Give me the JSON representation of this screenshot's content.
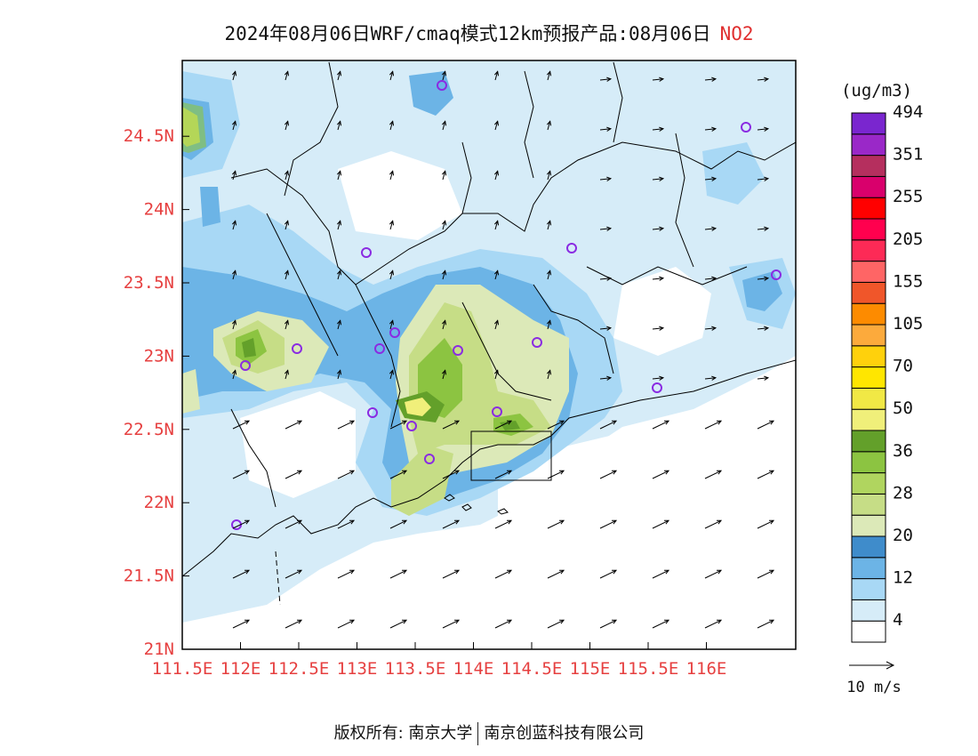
{
  "title": {
    "main": "2024年08月06日WRF/cmaq模式12km预报产品:08月06日",
    "pollutant": "NO2"
  },
  "legend": {
    "unit": "(ug/m3)",
    "colors": [
      "#ffffff",
      "#d6ecf8",
      "#a8d8f5",
      "#6cb4e6",
      "#3f8ccb",
      "#dce9b8",
      "#c6dd86",
      "#b0d55f",
      "#8cc441",
      "#63a02a",
      "#f0ef7a",
      "#f1e845",
      "#ffe600",
      "#ffd10c",
      "#fcaa3c",
      "#fd8b00",
      "#f0562a",
      "#ff6565",
      "#fd2a56",
      "#ff004e",
      "#ff0000",
      "#d9006c",
      "#b52f5e",
      "#9a28c8",
      "#7a26cf"
    ],
    "labels": [
      "4",
      "12",
      "20",
      "28",
      "36",
      "50",
      "70",
      "105",
      "155",
      "205",
      "255",
      "351",
      "494"
    ]
  },
  "axes": {
    "x_ticks": [
      "111.5E",
      "112E",
      "112.5E",
      "113E",
      "113.5E",
      "114E",
      "114.5E",
      "115E",
      "115.5E",
      "116E"
    ],
    "y_ticks": [
      "21N",
      "21.5N",
      "22N",
      "22.5N",
      "23N",
      "23.5N",
      "24N",
      "24.5N"
    ],
    "tick_color": "#e64040"
  },
  "wind_key": {
    "label": "10 m/s"
  },
  "footer": {
    "copyright": "版权所有: 南京大学",
    "company": "南京创蓝科技有限公司"
  }
}
